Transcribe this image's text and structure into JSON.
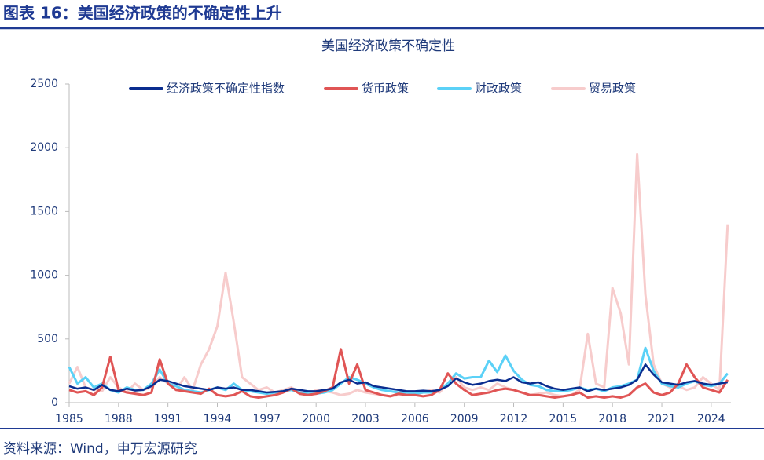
{
  "header": {
    "title": "图表 16：美国经济政策的不确定性上升"
  },
  "chart_data": {
    "type": "line",
    "title": "美国经济政策不确定性",
    "x": [
      1985,
      1985.5,
      1986,
      1986.5,
      1987,
      1987.5,
      1988,
      1988.5,
      1989,
      1989.5,
      1990,
      1990.5,
      1991,
      1991.5,
      1992,
      1992.5,
      1993,
      1993.5,
      1994,
      1994.5,
      1995,
      1995.5,
      1996,
      1996.5,
      1997,
      1997.5,
      1998,
      1998.5,
      1999,
      1999.5,
      2000,
      2000.5,
      2001,
      2001.5,
      2002,
      2002.5,
      2003,
      2003.5,
      2004,
      2004.5,
      2005,
      2005.5,
      2006,
      2006.5,
      2007,
      2007.5,
      2008,
      2008.5,
      2009,
      2009.5,
      2010,
      2010.5,
      2011,
      2011.5,
      2012,
      2012.5,
      2013,
      2013.5,
      2014,
      2014.5,
      2015,
      2015.5,
      2016,
      2016.5,
      2017,
      2017.5,
      2018,
      2018.5,
      2019,
      2019.5,
      2020,
      2020.5,
      2021,
      2021.5,
      2022,
      2022.5,
      2023,
      2023.5,
      2024,
      2024.5,
      2025
    ],
    "series": [
      {
        "name": "经济政策不确定性指数",
        "color": "#0a2d8f",
        "values": [
          130,
          110,
          120,
          100,
          140,
          100,
          90,
          110,
          95,
          100,
          130,
          180,
          170,
          150,
          130,
          120,
          110,
          100,
          120,
          110,
          120,
          100,
          100,
          90,
          80,
          85,
          90,
          110,
          100,
          90,
          90,
          100,
          110,
          160,
          180,
          150,
          160,
          130,
          120,
          110,
          100,
          90,
          90,
          95,
          90,
          100,
          130,
          190,
          160,
          140,
          150,
          170,
          180,
          170,
          200,
          160,
          150,
          160,
          130,
          110,
          100,
          110,
          120,
          90,
          110,
          100,
          110,
          120,
          140,
          180,
          300,
          220,
          160,
          150,
          140,
          160,
          170,
          150,
          140,
          150,
          160
        ]
      },
      {
        "name": "货币政策",
        "color": "#e05555",
        "values": [
          100,
          80,
          90,
          60,
          120,
          360,
          100,
          80,
          70,
          60,
          80,
          340,
          150,
          100,
          90,
          80,
          70,
          110,
          60,
          50,
          60,
          90,
          50,
          40,
          50,
          60,
          80,
          110,
          70,
          60,
          70,
          90,
          120,
          420,
          150,
          300,
          100,
          80,
          60,
          50,
          70,
          60,
          60,
          50,
          60,
          100,
          230,
          150,
          100,
          60,
          70,
          80,
          100,
          110,
          100,
          80,
          60,
          60,
          50,
          40,
          50,
          60,
          80,
          40,
          50,
          40,
          50,
          40,
          60,
          120,
          150,
          80,
          60,
          80,
          150,
          300,
          200,
          120,
          100,
          80,
          180
        ]
      },
      {
        "name": "财政政策",
        "color": "#5bd1f7",
        "values": [
          280,
          150,
          200,
          120,
          150,
          100,
          80,
          120,
          100,
          100,
          150,
          260,
          150,
          130,
          100,
          90,
          80,
          100,
          120,
          100,
          150,
          100,
          90,
          80,
          70,
          80,
          90,
          100,
          80,
          70,
          70,
          80,
          100,
          150,
          200,
          180,
          150,
          120,
          100,
          90,
          80,
          80,
          70,
          80,
          80,
          100,
          150,
          230,
          190,
          200,
          200,
          330,
          240,
          370,
          250,
          180,
          140,
          130,
          100,
          90,
          90,
          100,
          120,
          100,
          110,
          90,
          120,
          130,
          150,
          180,
          430,
          250,
          150,
          130,
          120,
          150,
          170,
          140,
          130,
          150,
          230
        ]
      },
      {
        "name": "贸易政策",
        "color": "#f7cccc",
        "values": [
          150,
          280,
          120,
          100,
          90,
          200,
          120,
          80,
          150,
          100,
          120,
          200,
          150,
          100,
          200,
          100,
          300,
          420,
          600,
          1020,
          630,
          200,
          150,
          100,
          120,
          80,
          100,
          120,
          80,
          60,
          100,
          90,
          80,
          60,
          70,
          100,
          80,
          70,
          60,
          50,
          60,
          70,
          60,
          80,
          100,
          80,
          150,
          200,
          120,
          100,
          120,
          100,
          150,
          120,
          100,
          80,
          60,
          70,
          80,
          60,
          50,
          60,
          100,
          540,
          150,
          120,
          900,
          700,
          300,
          1950,
          850,
          300,
          150,
          120,
          130,
          100,
          120,
          200,
          150,
          100,
          1400
        ]
      }
    ],
    "xlim": [
      1985,
      2025.2
    ],
    "ylim": [
      0,
      2500
    ],
    "xticks": [
      1985,
      1988,
      1991,
      1994,
      1997,
      2000,
      2003,
      2006,
      2009,
      2012,
      2015,
      2018,
      2021,
      2024
    ],
    "yticks": [
      0,
      500,
      1000,
      1500,
      2000,
      2500
    ]
  },
  "footer": {
    "source": "资料来源：Wind，申万宏源研究"
  }
}
